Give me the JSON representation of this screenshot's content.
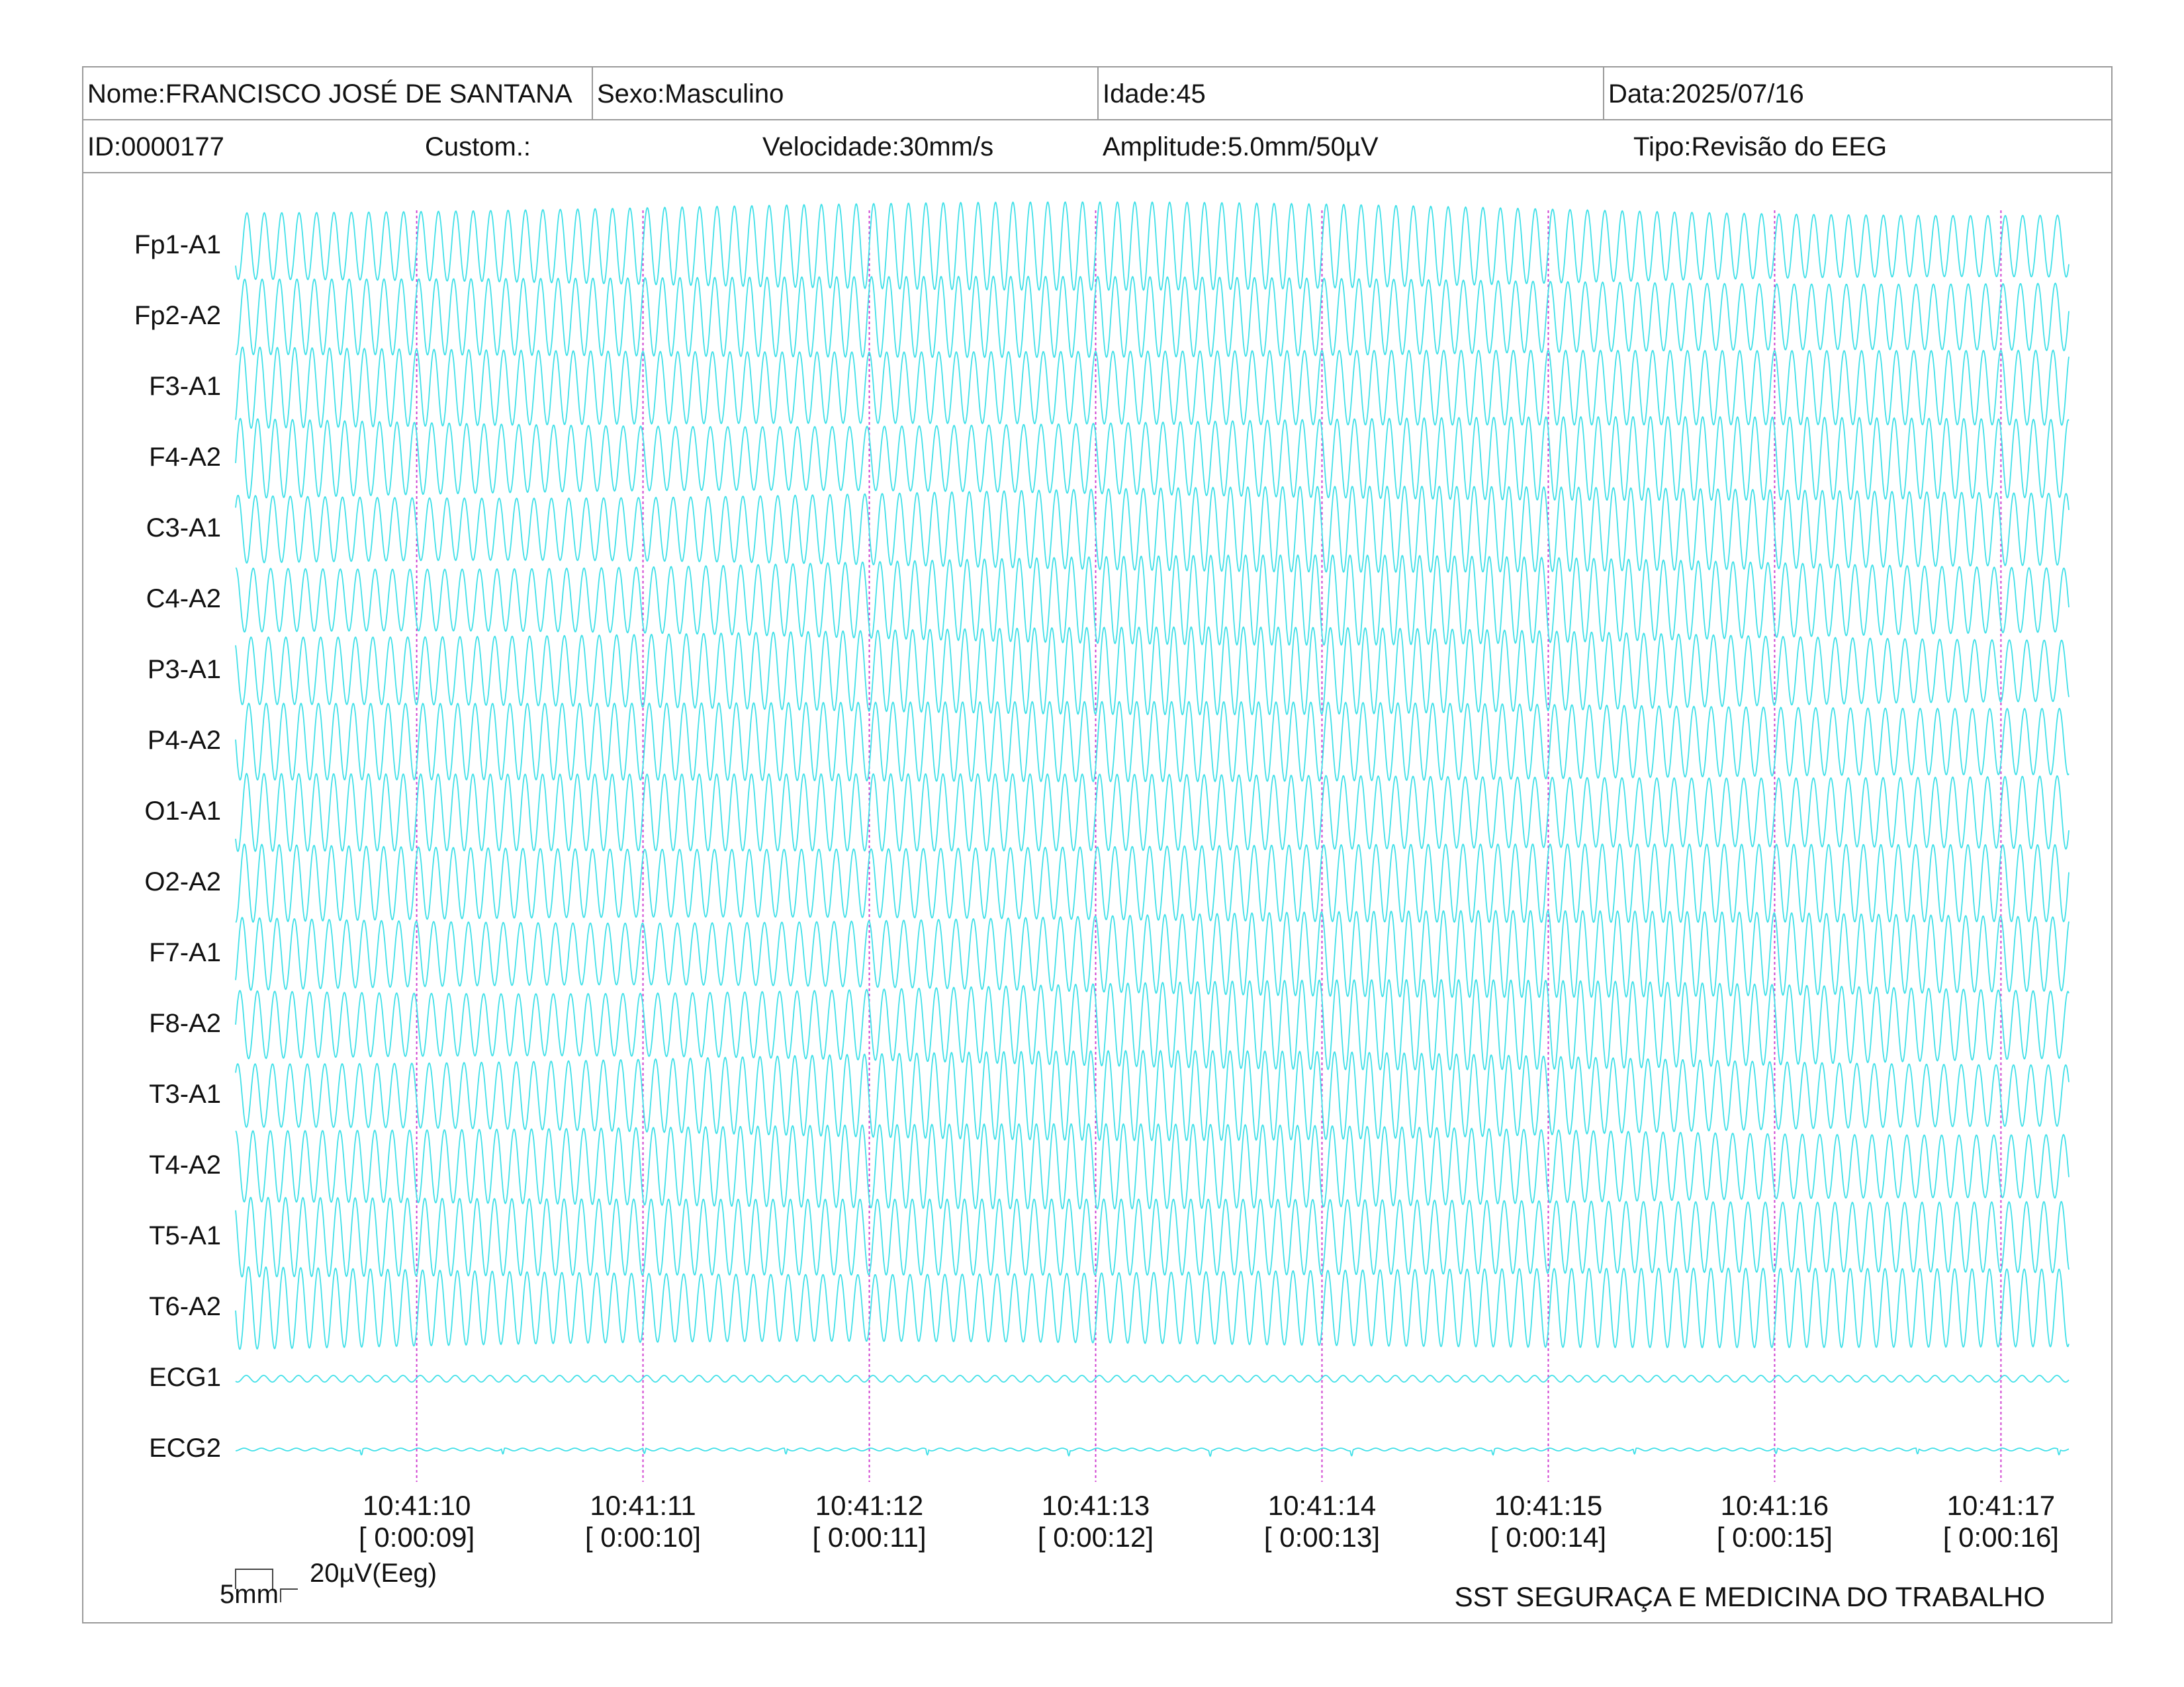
{
  "header": {
    "nome": "Nome:FRANCISCO JOSÉ DE SANTANA",
    "sexo": "Sexo:Masculino",
    "idade": "Idade:45",
    "data": "Data:2025/07/16",
    "id": "ID:0000177",
    "custom": "Custom.:",
    "velocidade": "Velocidade:30mm/s",
    "amplitude": "Amplitude:5.0mm/50µV",
    "tipo": "Tipo:Revisão do EEG"
  },
  "scale": {
    "time": "5mm",
    "amplitude": "20µV(Eeg)"
  },
  "footer": "SST SEGURAÇA E MEDICINA DO TRABALHO",
  "colors": {
    "trace": "#40e0e8",
    "marker": "#d040d0",
    "border": "#9a9a9a"
  },
  "chart_data": {
    "type": "line",
    "title": "",
    "channels": [
      "Fp1-A1",
      "Fp2-A2",
      "F3-A1",
      "F4-A2",
      "C3-A1",
      "C4-A2",
      "P3-A1",
      "P4-A2",
      "O1-A1",
      "O2-A2",
      "F7-A1",
      "F8-A2",
      "T3-A1",
      "T4-A2",
      "T5-A1",
      "T6-A2",
      "ECG1",
      "ECG2"
    ],
    "time_ticks": [
      {
        "clock": "10:41:10",
        "elapsed": "[ 0:00:09]"
      },
      {
        "clock": "10:41:11",
        "elapsed": "[ 0:00:10]"
      },
      {
        "clock": "10:41:12",
        "elapsed": "[ 0:00:11]"
      },
      {
        "clock": "10:41:13",
        "elapsed": "[ 0:00:12]"
      },
      {
        "clock": "10:41:14",
        "elapsed": "[ 0:00:13]"
      },
      {
        "clock": "10:41:15",
        "elapsed": "[ 0:00:14]"
      },
      {
        "clock": "10:41:16",
        "elapsed": "[ 0:00:15]"
      },
      {
        "clock": "10:41:17",
        "elapsed": "[ 0:00:16]"
      }
    ],
    "time_range_s": [
      8.2,
      16.3
    ],
    "eeg_frequency_hz": 13,
    "speed": "30mm/s",
    "amplitude_scale": "5.0mm/50µV",
    "grid": false
  }
}
